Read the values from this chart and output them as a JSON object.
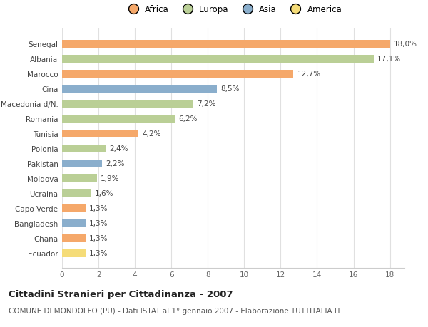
{
  "categories": [
    "Ecuador",
    "Ghana",
    "Bangladesh",
    "Capo Verde",
    "Ucraina",
    "Moldova",
    "Pakistan",
    "Polonia",
    "Tunisia",
    "Romania",
    "Macedonia d/N.",
    "Cina",
    "Marocco",
    "Albania",
    "Senegal"
  ],
  "values": [
    1.3,
    1.3,
    1.3,
    1.3,
    1.6,
    1.9,
    2.2,
    2.4,
    4.2,
    6.2,
    7.2,
    8.5,
    12.7,
    17.1,
    18.0
  ],
  "labels": [
    "1,3%",
    "1,3%",
    "1,3%",
    "1,3%",
    "1,6%",
    "1,9%",
    "2,2%",
    "2,4%",
    "4,2%",
    "6,2%",
    "7,2%",
    "8,5%",
    "12,7%",
    "17,1%",
    "18,0%"
  ],
  "continents": [
    "America",
    "Africa",
    "Asia",
    "Africa",
    "Europa",
    "Europa",
    "Asia",
    "Europa",
    "Africa",
    "Europa",
    "Europa",
    "Asia",
    "Africa",
    "Europa",
    "Africa"
  ],
  "continent_colors": {
    "Africa": "#F5A86A",
    "Europa": "#BACF96",
    "Asia": "#8AAECC",
    "America": "#F5DC78"
  },
  "legend_order": [
    "Africa",
    "Europa",
    "Asia",
    "America"
  ],
  "xlim": [
    0,
    18
  ],
  "xticks": [
    0,
    2,
    4,
    6,
    8,
    10,
    12,
    14,
    16,
    18
  ],
  "title": "Cittadini Stranieri per Cittadinanza - 2007",
  "subtitle": "COMUNE DI MONDOLFO (PU) - Dati ISTAT al 1° gennaio 2007 - Elaborazione TUTTITALIA.IT",
  "background_color": "#ffffff",
  "bar_height": 0.55,
  "grid_color": "#e0e0e0",
  "label_fontsize": 7.5,
  "ytick_fontsize": 7.5,
  "xtick_fontsize": 7.5,
  "title_fontsize": 9.5,
  "subtitle_fontsize": 7.5,
  "legend_fontsize": 8.5
}
